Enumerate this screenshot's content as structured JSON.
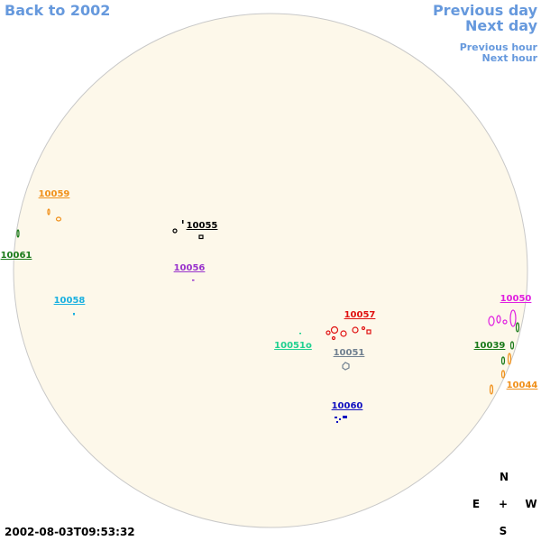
{
  "nav": {
    "back": "Back to 2002",
    "previous_day": "Previous day",
    "next_day": "Next day",
    "previous_hour": "Previous hour",
    "next_hour": "Next hour"
  },
  "regions": [
    {
      "label": "10059",
      "color": "#f0901a"
    },
    {
      "label": "10061",
      "color": "#1a7a1a"
    },
    {
      "label": "10055",
      "color": "#000000"
    },
    {
      "label": "10056",
      "color": "#9933cc"
    },
    {
      "label": "10058",
      "color": "#1ab0e0"
    },
    {
      "label": "10057",
      "color": "#e01010"
    },
    {
      "label": "10051o",
      "color": "#20d090"
    },
    {
      "label": "10051",
      "color": "#708090"
    },
    {
      "label": "10060",
      "color": "#1010c0"
    },
    {
      "label": "10050",
      "color": "#e020e0"
    },
    {
      "label": "10039",
      "color": "#1a7a1a"
    },
    {
      "label": "10044",
      "color": "#f0901a"
    }
  ],
  "compass": {
    "north": "N",
    "east": "E",
    "center": "+",
    "west": "W",
    "south": "S"
  },
  "timestamp": "2002-08-03T09:53:32"
}
